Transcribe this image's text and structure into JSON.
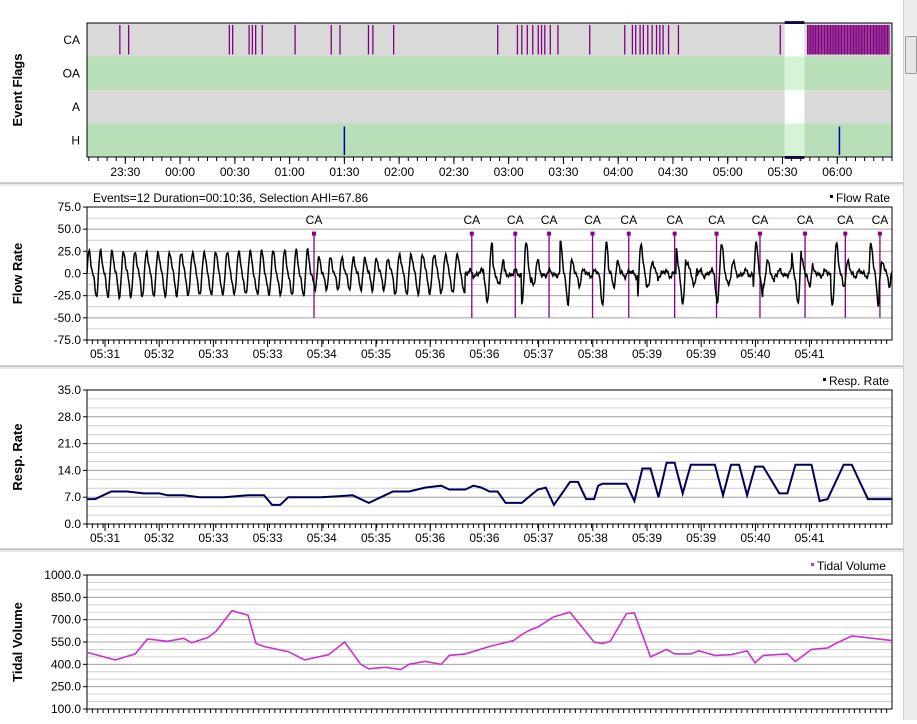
{
  "panels": {
    "event_flags": {
      "ylabel": "Event Flags"
    },
    "flow_rate": {
      "ylabel": "Flow Rate",
      "legend": "Flow Rate",
      "header": "Events=12 Duration=00:10:36, Selection AHI=67.86"
    },
    "resp_rate": {
      "ylabel": "Resp. Rate",
      "legend": "Resp. Rate"
    },
    "tidal_volume": {
      "ylabel": "Tidal Volume",
      "legend": "Tidal Volume"
    }
  },
  "colors": {
    "ca_flag": "#800080",
    "h_flag": "#0000aa",
    "row_gray": "#d9d9d9",
    "row_green": "#b9dfb9",
    "selection": "#ffffff",
    "flow_line": "#000000",
    "resp_line": "#00005a",
    "tidal_line": "#cc33cc",
    "event_marker": "#8b008b"
  },
  "chart_data": [
    {
      "type": "event_timeline",
      "rows": [
        "CA",
        "OA",
        "A",
        "H"
      ],
      "x_ticks": [
        "23:30",
        "00:00",
        "00:30",
        "01:00",
        "01:30",
        "02:00",
        "02:30",
        "03:00",
        "03:30",
        "04:00",
        "04:30",
        "05:00",
        "05:30",
        "06:00"
      ],
      "x_range_hours": [
        23.15,
        30.5
      ],
      "selection_hours": [
        29.52,
        29.7
      ],
      "events": {
        "CA": [
          23.45,
          23.53,
          24.45,
          24.48,
          24.63,
          24.66,
          24.69,
          24.75,
          25.05,
          25.38,
          25.46,
          25.72,
          25.76,
          25.95,
          26.9,
          27.08,
          27.12,
          27.17,
          27.22,
          27.27,
          27.3,
          27.33,
          27.38,
          27.45,
          27.74,
          28.06,
          28.13,
          28.16,
          28.2,
          28.23,
          28.27,
          28.31,
          28.35,
          28.38,
          28.41,
          28.46,
          28.55,
          29.48
        ],
        "OA": [],
        "A": [],
        "H": [
          25.5,
          30.02
        ]
      }
    },
    {
      "type": "line",
      "series": [
        {
          "name": "Flow Rate"
        }
      ],
      "ylim": [
        -75,
        75
      ],
      "y_ticks": [
        "75.0",
        "50.0",
        "25.0",
        "0.0",
        "-25.0",
        "-50.0",
        "-75.0"
      ],
      "x_ticks": [
        "05:31",
        "05:32",
        "05:33",
        "05:33",
        "05:34",
        "05:35",
        "05:36",
        "05:36",
        "05:37",
        "05:38",
        "05:39",
        "05:39",
        "05:40",
        "05:41"
      ],
      "events": [
        {
          "label": "CA",
          "x": 0.282
        },
        {
          "label": "CA",
          "x": 0.478
        },
        {
          "label": "CA",
          "x": 0.532
        },
        {
          "label": "CA",
          "x": 0.574
        },
        {
          "label": "CA",
          "x": 0.628
        },
        {
          "label": "CA",
          "x": 0.673
        },
        {
          "label": "CA",
          "x": 0.73
        },
        {
          "label": "CA",
          "x": 0.782
        },
        {
          "label": "CA",
          "x": 0.836
        },
        {
          "label": "CA",
          "x": 0.892
        },
        {
          "label": "CA",
          "x": 0.942
        },
        {
          "label": "CA",
          "x": 0.985
        }
      ]
    },
    {
      "type": "line",
      "series": [
        {
          "name": "Resp. Rate",
          "x": [
            0,
            0.01,
            0.015,
            0.02,
            0.03,
            0.04,
            0.05,
            0.07,
            0.09,
            0.1,
            0.12,
            0.14,
            0.15,
            0.17,
            0.2,
            0.22,
            0.23,
            0.24,
            0.25,
            0.27,
            0.29,
            0.31,
            0.33,
            0.35,
            0.36,
            0.37,
            0.38,
            0.4,
            0.42,
            0.44,
            0.45,
            0.47,
            0.48,
            0.49,
            0.5,
            0.51,
            0.52,
            0.54,
            0.56,
            0.57,
            0.58,
            0.59,
            0.6,
            0.61,
            0.62,
            0.63,
            0.635,
            0.64,
            0.67,
            0.68,
            0.69,
            0.7,
            0.71,
            0.72,
            0.73,
            0.74,
            0.75,
            0.78,
            0.79,
            0.8,
            0.81,
            0.82,
            0.83,
            0.84,
            0.86,
            0.87,
            0.88,
            0.9,
            0.91,
            0.92,
            0.94,
            0.95,
            0.97,
            1.0
          ],
          "y": [
            6.5,
            6.5,
            7,
            7.5,
            8.5,
            8.5,
            8.5,
            8,
            8,
            7.5,
            7.5,
            7,
            7,
            7,
            7.5,
            7.5,
            5,
            5,
            7,
            7,
            7,
            7.2,
            7.5,
            5.5,
            6.5,
            7.5,
            8.5,
            8.5,
            9.5,
            10,
            9,
            9,
            10,
            9.5,
            8.5,
            8.5,
            5.5,
            5.5,
            9,
            9.5,
            5,
            8,
            11,
            11,
            6.5,
            6.5,
            10,
            10.5,
            10.5,
            6,
            14.5,
            14.5,
            7,
            16,
            16,
            8,
            15.5,
            15.5,
            7.5,
            15.5,
            15.5,
            7.5,
            15,
            15,
            8,
            8,
            15.5,
            15.5,
            6,
            6.5,
            15.5,
            15.5,
            6.5,
            6.5
          ]
        }
      ],
      "ylim": [
        0,
        35
      ],
      "y_ticks": [
        "35.0",
        "28.0",
        "21.0",
        "14.0",
        "7.0",
        "0.0"
      ],
      "x_ticks": [
        "05:31",
        "05:32",
        "05:33",
        "05:33",
        "05:34",
        "05:35",
        "05:36",
        "05:36",
        "05:37",
        "05:38",
        "05:39",
        "05:39",
        "05:40",
        "05:41"
      ]
    },
    {
      "type": "line",
      "series": [
        {
          "name": "Tidal Volume",
          "x": [
            0,
            0.035,
            0.06,
            0.075,
            0.1,
            0.12,
            0.13,
            0.15,
            0.16,
            0.18,
            0.2,
            0.21,
            0.22,
            0.25,
            0.27,
            0.3,
            0.32,
            0.34,
            0.35,
            0.37,
            0.39,
            0.4,
            0.42,
            0.44,
            0.45,
            0.47,
            0.5,
            0.53,
            0.54,
            0.55,
            0.56,
            0.58,
            0.6,
            0.63,
            0.64,
            0.65,
            0.67,
            0.68,
            0.7,
            0.72,
            0.73,
            0.75,
            0.76,
            0.78,
            0.8,
            0.82,
            0.83,
            0.84,
            0.87,
            0.88,
            0.9,
            0.92,
            0.93,
            0.95,
            1.0
          ],
          "y": [
            480,
            430,
            470,
            570,
            555,
            575,
            545,
            580,
            620,
            760,
            730,
            540,
            520,
            485,
            430,
            465,
            550,
            400,
            370,
            380,
            365,
            400,
            420,
            400,
            460,
            470,
            520,
            560,
            600,
            630,
            650,
            720,
            750,
            550,
            540,
            555,
            740,
            745,
            450,
            500,
            470,
            470,
            490,
            460,
            465,
            490,
            410,
            460,
            470,
            420,
            500,
            510,
            540,
            590,
            560
          ]
        }
      ],
      "ylim": [
        100,
        1000
      ],
      "y_ticks": [
        "1000.0",
        "850.0",
        "700.0",
        "550.0",
        "400.0",
        "250.0",
        "100.0"
      ]
    }
  ]
}
